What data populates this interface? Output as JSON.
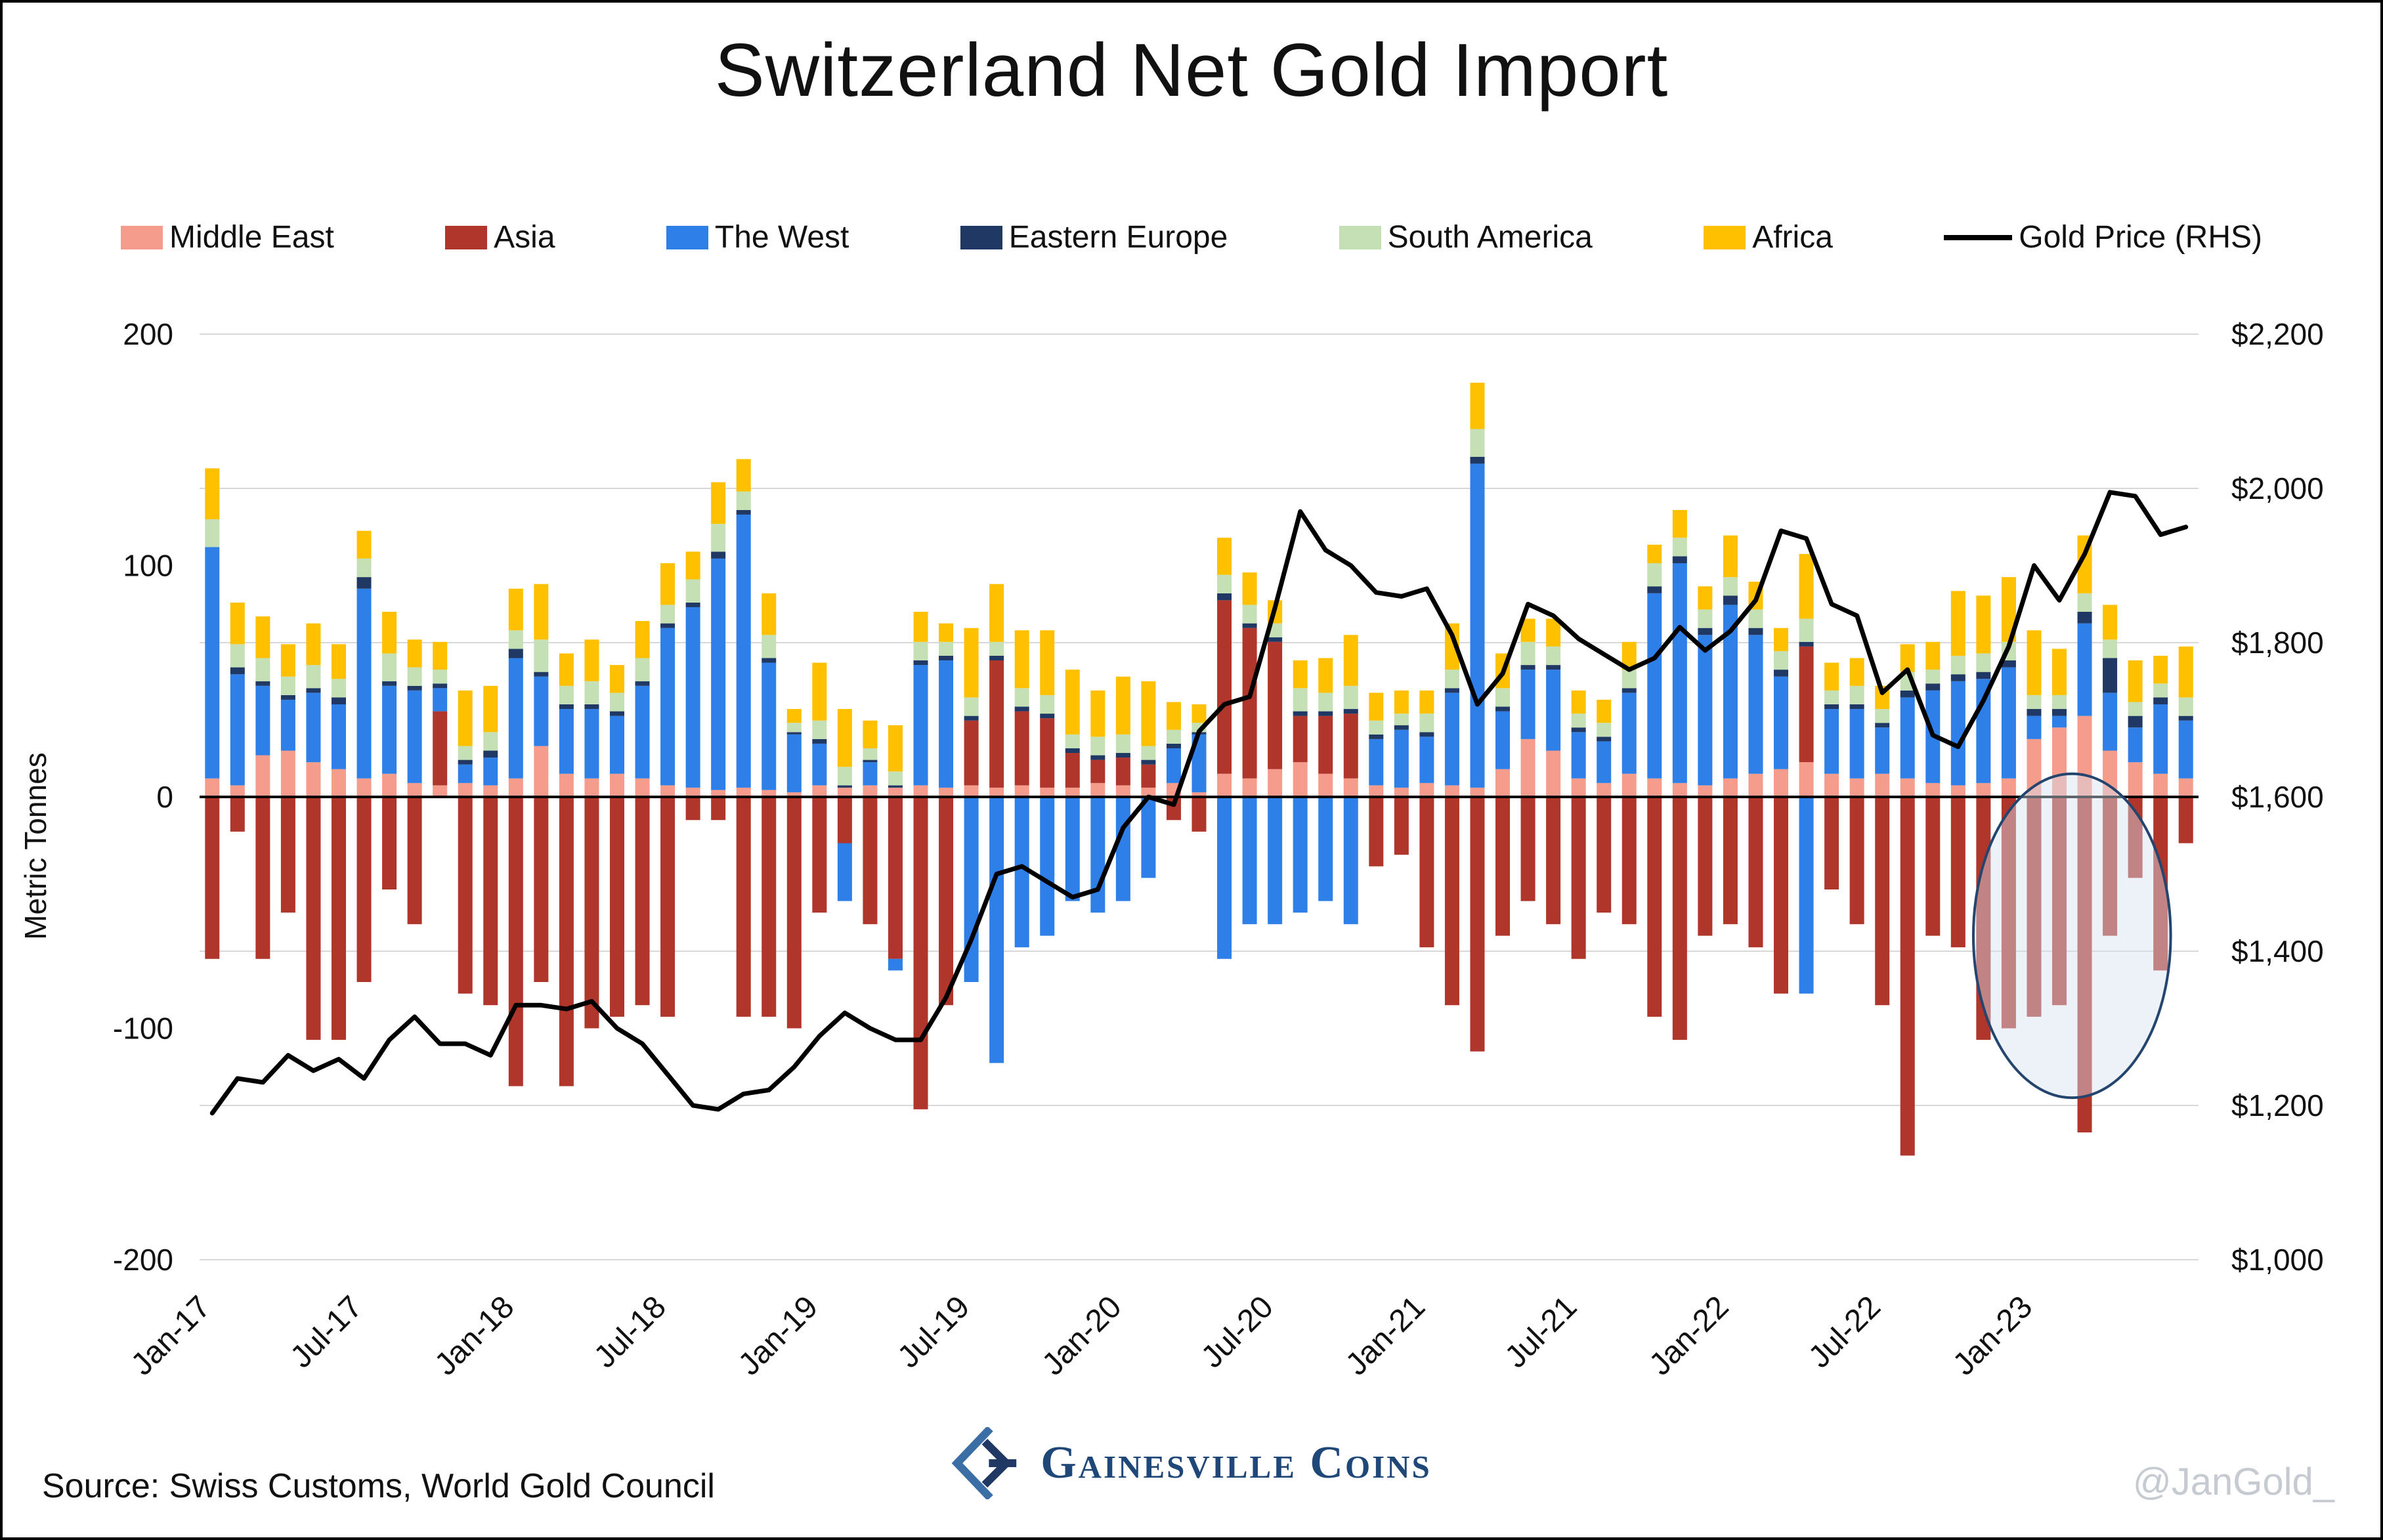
{
  "page": {
    "title": "Switzerland Net Gold Import",
    "y_axis_title": "Metric Tonnes"
  },
  "legend": {
    "items": [
      {
        "label": "Middle East",
        "type": "box",
        "color": "#F59C8D"
      },
      {
        "label": "Asia",
        "type": "box",
        "color": "#B0352B"
      },
      {
        "label": "The West",
        "type": "box",
        "color": "#2E7FE8"
      },
      {
        "label": "Eastern Europe",
        "type": "box",
        "color": "#1F3864"
      },
      {
        "label": "South America",
        "type": "box",
        "color": "#C5E0B4"
      },
      {
        "label": "Africa",
        "type": "box",
        "color": "#FFC000"
      },
      {
        "label": "Gold Price (RHS)",
        "type": "line",
        "color": "#000000"
      }
    ]
  },
  "chart_data": {
    "type": "bar",
    "title": "Switzerland Net Gold Import",
    "ylabel": "Metric Tonnes",
    "grid_color": "#D8D8D8",
    "zero_line_color": "#000000",
    "left_axis": {
      "min": -200,
      "max": 200,
      "ticks": [
        200,
        100,
        0,
        -100,
        -200
      ]
    },
    "right_axis": {
      "min": 1000,
      "max": 2200,
      "ticks": [
        "$2,200",
        "$2,000",
        "$1,800",
        "$1,600",
        "$1,400",
        "$1,200",
        "$1,000"
      ],
      "tick_values": [
        2200,
        2000,
        1800,
        1600,
        1400,
        1200,
        1000
      ]
    },
    "categories": [
      "Jan-17",
      "Feb-17",
      "Mar-17",
      "Apr-17",
      "May-17",
      "Jun-17",
      "Jul-17",
      "Aug-17",
      "Sep-17",
      "Oct-17",
      "Nov-17",
      "Dec-17",
      "Jan-18",
      "Feb-18",
      "Mar-18",
      "Apr-18",
      "May-18",
      "Jun-18",
      "Jul-18",
      "Aug-18",
      "Sep-18",
      "Oct-18",
      "Nov-18",
      "Dec-18",
      "Jan-19",
      "Feb-19",
      "Mar-19",
      "Apr-19",
      "May-19",
      "Jun-19",
      "Jul-19",
      "Aug-19",
      "Sep-19",
      "Oct-19",
      "Nov-19",
      "Dec-19",
      "Jan-20",
      "Feb-20",
      "Mar-20",
      "Apr-20",
      "May-20",
      "Jun-20",
      "Jul-20",
      "Aug-20",
      "Sep-20",
      "Oct-20",
      "Nov-20",
      "Dec-20",
      "Jan-21",
      "Feb-21",
      "Mar-21",
      "Apr-21",
      "May-21",
      "Jun-21",
      "Jul-21",
      "Aug-21",
      "Sep-21",
      "Oct-21",
      "Nov-21",
      "Dec-21",
      "Jan-22",
      "Feb-22",
      "Mar-22",
      "Apr-22",
      "May-22",
      "Jun-22",
      "Jul-22",
      "Aug-22",
      "Sep-22",
      "Oct-22",
      "Nov-22",
      "Dec-22",
      "Jan-23",
      "Feb-23",
      "Mar-23",
      "Apr-23",
      "May-23",
      "Jun-23",
      "Jul-23"
    ],
    "x_tick_indices": [
      0,
      6,
      12,
      18,
      24,
      30,
      36,
      42,
      48,
      54,
      60,
      66,
      72
    ],
    "series": [
      {
        "name": "Middle East",
        "color": "#F59C8D",
        "values": [
          8,
          5,
          18,
          20,
          15,
          12,
          8,
          10,
          6,
          5,
          6,
          5,
          8,
          22,
          10,
          8,
          10,
          8,
          5,
          4,
          3,
          4,
          3,
          2,
          5,
          4,
          5,
          4,
          5,
          4,
          5,
          4,
          5,
          4,
          4,
          6,
          5,
          4,
          6,
          2,
          10,
          8,
          12,
          15,
          10,
          8,
          5,
          4,
          6,
          5,
          4,
          12,
          25,
          20,
          8,
          6,
          10,
          8,
          6,
          5,
          8,
          10,
          12,
          15,
          10,
          8,
          10,
          8,
          6,
          5,
          6,
          8,
          25,
          30,
          35,
          20,
          15,
          10,
          8
        ]
      },
      {
        "name": "Asia",
        "color": "#B0352B",
        "values": [
          -70,
          -15,
          -70,
          -50,
          -105,
          -105,
          -80,
          -40,
          -55,
          32,
          -85,
          -90,
          -125,
          -80,
          -125,
          -100,
          -95,
          -90,
          -95,
          -10,
          -10,
          -95,
          -95,
          -100,
          -50,
          -20,
          -55,
          -70,
          -135,
          -90,
          28,
          55,
          32,
          30,
          15,
          10,
          12,
          10,
          -10,
          -15,
          75,
          65,
          55,
          20,
          25,
          28,
          -30,
          -25,
          -65,
          -90,
          -110,
          -60,
          -45,
          -55,
          -70,
          -50,
          -55,
          -95,
          -105,
          -60,
          -55,
          -65,
          -85,
          50,
          -40,
          -55,
          -90,
          -155,
          -60,
          -65,
          -105,
          -100,
          -95,
          -90,
          -145,
          -60,
          -35,
          -75,
          -20
        ]
      },
      {
        "name": "The West",
        "color": "#2E7FE8",
        "values": [
          100,
          48,
          30,
          22,
          30,
          28,
          82,
          38,
          40,
          10,
          8,
          12,
          52,
          30,
          28,
          30,
          25,
          40,
          68,
          78,
          100,
          118,
          55,
          25,
          18,
          -25,
          10,
          -5,
          52,
          55,
          -80,
          -115,
          -65,
          -60,
          -45,
          -50,
          -45,
          -35,
          15,
          25,
          -70,
          -55,
          -55,
          -50,
          -45,
          -55,
          20,
          25,
          20,
          40,
          140,
          25,
          30,
          35,
          20,
          18,
          35,
          80,
          95,
          65,
          75,
          60,
          40,
          -85,
          28,
          30,
          20,
          35,
          40,
          45,
          45,
          48,
          10,
          5,
          40,
          25,
          15,
          30,
          25
        ]
      },
      {
        "name": "Eastern Europe",
        "color": "#1F3864",
        "values": [
          0,
          3,
          2,
          2,
          2,
          3,
          5,
          2,
          2,
          2,
          2,
          3,
          4,
          2,
          2,
          2,
          2,
          2,
          2,
          2,
          3,
          2,
          2,
          1,
          2,
          1,
          1,
          1,
          2,
          2,
          2,
          2,
          2,
          2,
          2,
          2,
          2,
          2,
          2,
          1,
          3,
          2,
          2,
          2,
          2,
          2,
          2,
          2,
          2,
          2,
          3,
          2,
          2,
          2,
          2,
          2,
          2,
          3,
          3,
          3,
          4,
          3,
          3,
          2,
          2,
          2,
          2,
          3,
          3,
          3,
          3,
          3,
          3,
          3,
          5,
          15,
          5,
          3,
          2
        ]
      },
      {
        "name": "South America",
        "color": "#C5E0B4",
        "values": [
          12,
          10,
          10,
          8,
          10,
          8,
          8,
          12,
          8,
          6,
          6,
          8,
          8,
          14,
          8,
          10,
          8,
          10,
          8,
          10,
          12,
          8,
          10,
          4,
          8,
          8,
          5,
          6,
          8,
          6,
          8,
          6,
          8,
          8,
          6,
          8,
          8,
          6,
          6,
          4,
          8,
          8,
          6,
          10,
          8,
          10,
          6,
          5,
          8,
          8,
          12,
          8,
          10,
          8,
          6,
          6,
          8,
          10,
          8,
          8,
          8,
          8,
          8,
          10,
          6,
          8,
          6,
          8,
          6,
          8,
          8,
          8,
          6,
          6,
          8,
          8,
          6,
          6,
          8
        ]
      },
      {
        "name": "Africa",
        "color": "#FFC000",
        "values": [
          22,
          18,
          18,
          14,
          18,
          15,
          12,
          18,
          12,
          12,
          24,
          20,
          18,
          24,
          14,
          18,
          12,
          16,
          18,
          12,
          18,
          14,
          18,
          6,
          25,
          25,
          12,
          20,
          13,
          8,
          30,
          25,
          25,
          28,
          28,
          20,
          25,
          28,
          12,
          8,
          16,
          14,
          10,
          12,
          15,
          22,
          12,
          10,
          10,
          20,
          20,
          15,
          10,
          12,
          10,
          10,
          12,
          8,
          12,
          10,
          18,
          12,
          10,
          28,
          12,
          12,
          10,
          12,
          12,
          28,
          25,
          28,
          28,
          20,
          25,
          15,
          18,
          12,
          22
        ]
      }
    ],
    "line_series": {
      "name": "Gold Price (RHS)",
      "color": "#000000",
      "values": [
        1190,
        1235,
        1230,
        1265,
        1245,
        1260,
        1235,
        1285,
        1315,
        1280,
        1280,
        1265,
        1330,
        1330,
        1325,
        1335,
        1300,
        1280,
        1240,
        1200,
        1195,
        1215,
        1220,
        1250,
        1290,
        1320,
        1300,
        1285,
        1285,
        1340,
        1415,
        1500,
        1510,
        1490,
        1470,
        1480,
        1560,
        1600,
        1590,
        1685,
        1720,
        1730,
        1845,
        1970,
        1920,
        1900,
        1865,
        1860,
        1870,
        1810,
        1720,
        1760,
        1850,
        1835,
        1805,
        1785,
        1765,
        1780,
        1820,
        1790,
        1815,
        1855,
        1945,
        1935,
        1850,
        1835,
        1735,
        1765,
        1680,
        1665,
        1725,
        1795,
        1900,
        1855,
        1915,
        1995,
        1990,
        1940,
        1950
      ]
    },
    "annotation_ellipse": {
      "center_index": 73.5,
      "center_tonnes": -60,
      "rx_months": 3.9,
      "ry_tonnes": 70,
      "fill": "#D6E2F0",
      "fill_opacity": 0.45,
      "stroke": "#24456E",
      "stroke_width": 4
    }
  },
  "footer": {
    "source": "Source: Swiss Customs, World Gold Council",
    "brand": "Gainesville Coins",
    "handle": "@JanGold_"
  }
}
